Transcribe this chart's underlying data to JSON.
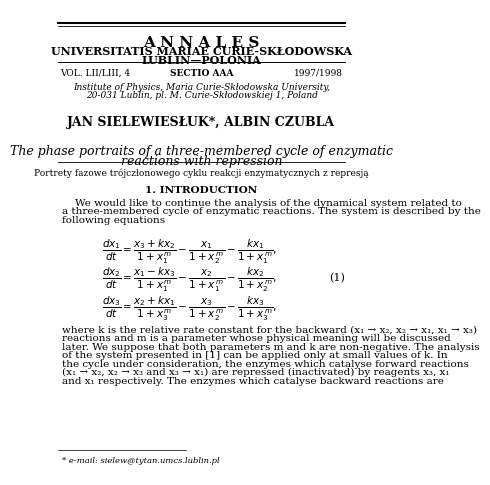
{
  "title_line1": "A N N A L E S",
  "title_line2": "UNIVERSITATIS MARIAE CURIE-SKŁODOWSKA",
  "title_line3": "LUBLIN—POLONIA",
  "vol_left": "VOL. LII/LIII, 4",
  "vol_center": "SECTIO AAA",
  "vol_right": "1997/1998",
  "affil1": "Institute of Physics, Maria Curie-Skłodowska University,",
  "affil2": "20-031 Lublin, pl. M. Curie-Skłodowskiej 1, Poland",
  "authors": "JAN SIELEWIESŁUK*, ALBIN CZUBLA",
  "paper_title1": "The phase portraits of a three-membered cycle of enzymatic",
  "paper_title2": "reactions with repression",
  "polish_title": "Portrety fazowe trójczłonowego cyklu reakcji enzymatycznych z represją",
  "section": "1. INTRODUCTION",
  "intro_text1": "    We would like to continue the analysis of the dynamical system related to",
  "intro_text2": "a three-membered cycle of enzymatic reactions. The system is described by the",
  "intro_text3": "following equations",
  "eq_label": "(1)",
  "footnote": "* e-mail: sielew@tytan.umcs.lublin.pl",
  "bg_color": "#ffffff",
  "bottom_text": [
    "where k is the relative rate constant for the backward (x₁ → x₂, x₂ → x₁, x₁ → x₃)",
    "reactions and m is a parameter whose physical meaning will be discussed",
    "later. We suppose that both parameters m and k are non-negative. The analysis",
    "of the system presented in [1] can be applied only at small values of k. In",
    "the cycle under consideration, the enzymes which catalyse forward reactions",
    "(x₁ → x₂, x₂ → x₃ and x₃ → x₁) are repressed (inactivated) by reagents x₃, x₁",
    "and x₁ respectively. The enzymes which catalyse backward reactions are"
  ]
}
